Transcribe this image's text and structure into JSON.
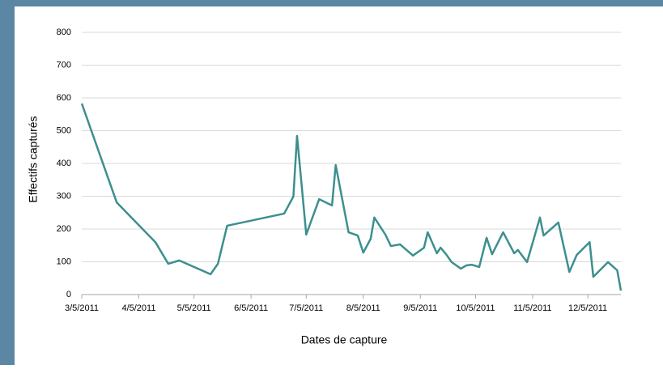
{
  "chart_data": {
    "type": "line",
    "x_label": "Dates de capture",
    "y_label": "Effectifs capturés",
    "color": "#3d8f8f",
    "grid": true,
    "x": [
      "2011-03-05",
      "2011-03-24",
      "2011-04-14",
      "2011-04-21",
      "2011-04-27",
      "2011-05-14",
      "2011-05-18",
      "2011-05-23",
      "2011-06-23",
      "2011-06-28",
      "2011-06-30",
      "2011-07-05",
      "2011-07-12",
      "2011-07-19",
      "2011-07-21",
      "2011-07-28",
      "2011-08-02",
      "2011-08-05",
      "2011-08-09",
      "2011-08-11",
      "2011-08-17",
      "2011-08-20",
      "2011-08-25",
      "2011-09-01",
      "2011-09-07",
      "2011-09-09",
      "2011-09-14",
      "2011-09-16",
      "2011-09-19",
      "2011-09-22",
      "2011-09-27",
      "2011-09-30",
      "2011-10-03",
      "2011-10-07",
      "2011-10-11",
      "2011-10-14",
      "2011-10-20",
      "2011-10-26",
      "2011-10-28",
      "2011-11-02",
      "2011-11-09",
      "2011-11-11",
      "2011-11-19",
      "2011-11-25",
      "2011-11-29",
      "2011-12-06",
      "2011-12-08",
      "2011-12-16",
      "2011-12-21",
      "2011-12-23"
    ],
    "values": [
      583,
      281,
      160,
      94,
      104,
      62,
      94,
      210,
      247,
      299,
      484,
      183,
      291,
      272,
      395,
      190,
      180,
      128,
      170,
      235,
      183,
      148,
      153,
      119,
      143,
      190,
      126,
      143,
      123,
      99,
      79,
      89,
      91,
      84,
      173,
      123,
      190,
      126,
      136,
      99,
      235,
      180,
      220,
      69,
      121,
      160,
      54,
      99,
      74,
      12
    ],
    "xlim": [
      "2011-03-05",
      "2011-12-23"
    ],
    "xticks": [
      {
        "value": "2011-03-05",
        "label": "3/5/2011"
      },
      {
        "value": "2011-04-05",
        "label": "4/5/2011"
      },
      {
        "value": "2011-05-05",
        "label": "5/5/2011"
      },
      {
        "value": "2011-06-05",
        "label": "6/5/2011"
      },
      {
        "value": "2011-07-05",
        "label": "7/5/2011"
      },
      {
        "value": "2011-08-05",
        "label": "8/5/2011"
      },
      {
        "value": "2011-09-05",
        "label": "9/5/2011"
      },
      {
        "value": "2011-10-05",
        "label": "10/5/2011"
      },
      {
        "value": "2011-11-05",
        "label": "11/5/2011"
      },
      {
        "value": "2011-12-05",
        "label": "12/5/2011"
      }
    ],
    "ylim": [
      0,
      800
    ],
    "yticks": [
      0,
      100,
      200,
      300,
      400,
      500,
      600,
      700,
      800
    ]
  }
}
